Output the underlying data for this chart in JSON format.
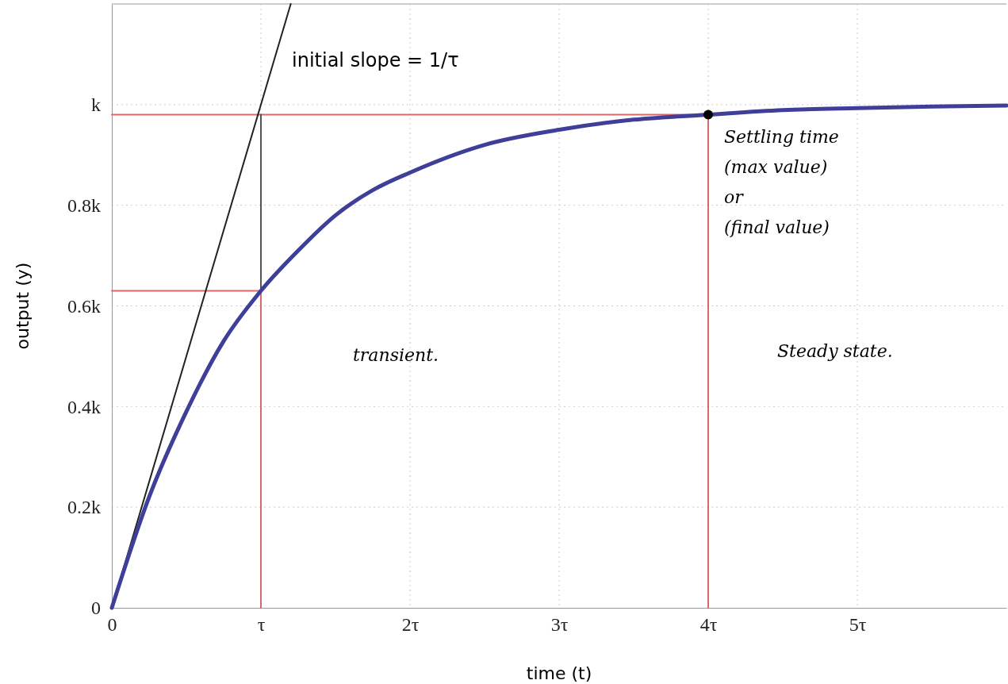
{
  "chart_data": {
    "type": "line",
    "xlabel": "time (t)",
    "ylabel": "output (y)",
    "xlim": [
      0,
      6
    ],
    "ylim": [
      0,
      1.2
    ],
    "xticks": [
      0,
      {
        "value": 1,
        "label": "τ"
      },
      {
        "value": 2,
        "label": "2τ"
      },
      {
        "value": 3,
        "label": "3τ"
      },
      {
        "value": 4,
        "label": "4τ"
      },
      {
        "value": 5,
        "label": "5τ"
      }
    ],
    "yticks": [
      0,
      {
        "value": 0.2,
        "label": "0.2k"
      },
      {
        "value": 0.4,
        "label": "0.4k"
      },
      {
        "value": 0.6,
        "label": "0.6k"
      },
      {
        "value": 0.8,
        "label": "0.8k"
      },
      {
        "value": 1,
        "label": "k"
      }
    ],
    "grid": true,
    "series": [
      {
        "color": "#d66a6a",
        "x": [
          0,
          1,
          1
        ],
        "values": [
          0.63,
          0.63,
          0
        ]
      },
      {
        "color": "#d66a6a",
        "x": [
          0,
          4,
          4
        ],
        "values": [
          0.98,
          0.98,
          0
        ]
      },
      {
        "color": "#555555",
        "x": [
          1,
          1
        ],
        "values": [
          0.63,
          0.98
        ]
      },
      {
        "color": "#222222",
        "x": [
          0,
          1.2
        ],
        "values": [
          0,
          1.2
        ]
      },
      {
        "color": "#3f3f9a",
        "x": [
          0,
          0.25,
          0.5,
          0.75,
          1,
          1.25,
          1.5,
          1.75,
          2,
          2.5,
          3,
          3.5,
          4,
          4.5,
          5,
          5.5,
          6
        ],
        "values": [
          0,
          0.22,
          0.39,
          0.53,
          0.63,
          0.71,
          0.78,
          0.83,
          0.865,
          0.92,
          0.95,
          0.97,
          0.98,
          0.989,
          0.993,
          0.996,
          0.998
        ]
      },
      {
        "type": "scatter",
        "color": "#000000",
        "marker": "circle",
        "x": [
          4
        ],
        "values": [
          0.98
        ]
      }
    ],
    "annotations": [
      "initial slope = 1/τ",
      {
        "text": "Settling time\n(max value)\nor\n(final value)",
        "x": 4,
        "y": 0.98
      },
      "transient.",
      "Steady state."
    ]
  }
}
